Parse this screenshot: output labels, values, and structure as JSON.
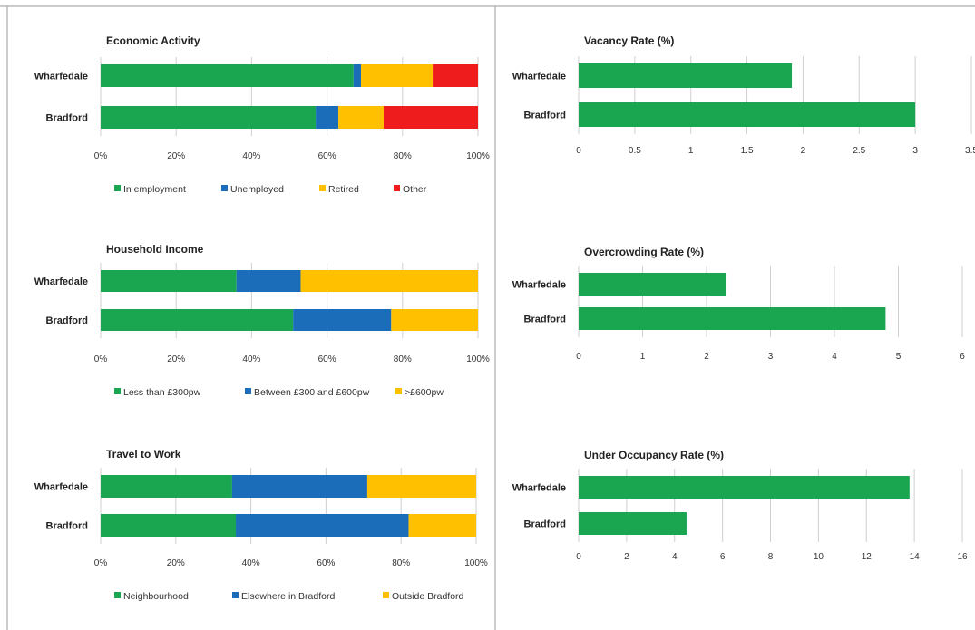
{
  "colors": {
    "green": "#1aa550",
    "blue": "#1b6db9",
    "yellow": "#ffc000",
    "red": "#ee1c1c",
    "grid": "#cfcfcf",
    "border": "#9a9a9a"
  },
  "chart_data": [
    {
      "type": "bar",
      "orientation": "horizontal",
      "stacked": true,
      "percent": true,
      "title": "Economic Activity",
      "categories": [
        "Wharfedale",
        "Bradford"
      ],
      "series": [
        {
          "name": "In employment",
          "values": [
            67,
            57
          ],
          "color": "#1aa550"
        },
        {
          "name": "Unemployed",
          "values": [
            2,
            6
          ],
          "color": "#1b6db9"
        },
        {
          "name": "Retired",
          "values": [
            19,
            12
          ],
          "color": "#ffc000"
        },
        {
          "name": "Other",
          "values": [
            12,
            25
          ],
          "color": "#ee1c1c"
        }
      ],
      "xticks": [
        "0%",
        "20%",
        "40%",
        "60%",
        "80%",
        "100%"
      ],
      "xlim": [
        0,
        100
      ],
      "grid": true,
      "legend": "bottom"
    },
    {
      "type": "bar",
      "orientation": "horizontal",
      "stacked": true,
      "percent": true,
      "title": "Household Income",
      "categories": [
        "Wharfedale",
        "Bradford"
      ],
      "series": [
        {
          "name": "Less than £300pw",
          "values": [
            36,
            51
          ],
          "color": "#1aa550"
        },
        {
          "name": "Between £300 and £600pw",
          "values": [
            17,
            26
          ],
          "color": "#1b6db9"
        },
        {
          "name": ">£600pw",
          "values": [
            47,
            23
          ],
          "color": "#ffc000"
        }
      ],
      "xticks": [
        "0%",
        "20%",
        "40%",
        "60%",
        "80%",
        "100%"
      ],
      "xlim": [
        0,
        100
      ],
      "grid": true,
      "legend": "bottom"
    },
    {
      "type": "bar",
      "orientation": "horizontal",
      "stacked": true,
      "percent": true,
      "title": "Travel to Work",
      "categories": [
        "Wharfedale",
        "Bradford"
      ],
      "series": [
        {
          "name": "Neighbourhood",
          "values": [
            35,
            36
          ],
          "color": "#1aa550"
        },
        {
          "name": "Elsewhere in Bradford",
          "values": [
            36,
            46
          ],
          "color": "#1b6db9"
        },
        {
          "name": "Outside Bradford",
          "values": [
            29,
            18
          ],
          "color": "#ffc000"
        }
      ],
      "xticks": [
        "0%",
        "20%",
        "40%",
        "60%",
        "80%",
        "100%"
      ],
      "xlim": [
        0,
        100
      ],
      "grid": true,
      "legend": "bottom"
    },
    {
      "type": "bar",
      "orientation": "horizontal",
      "stacked": false,
      "title": "Vacancy Rate (%)",
      "categories": [
        "Wharfedale",
        "Bradford"
      ],
      "series": [
        {
          "values": [
            1.9,
            3.0
          ],
          "color": "#1aa550"
        }
      ],
      "xticks": [
        "0",
        "0.5",
        "1",
        "1.5",
        "2",
        "2.5",
        "3",
        "3.5"
      ],
      "xlim": [
        0,
        3.5
      ],
      "grid": true
    },
    {
      "type": "bar",
      "orientation": "horizontal",
      "stacked": false,
      "title": "Overcrowding Rate (%)",
      "categories": [
        "Wharfedale",
        "Bradford"
      ],
      "series": [
        {
          "values": [
            2.3,
            4.8
          ],
          "color": "#1aa550"
        }
      ],
      "xticks": [
        "0",
        "1",
        "2",
        "3",
        "4",
        "5",
        "6"
      ],
      "xlim": [
        0,
        6
      ],
      "grid": true
    },
    {
      "type": "bar",
      "orientation": "horizontal",
      "stacked": false,
      "title": "Under Occupancy Rate (%)",
      "categories": [
        "Wharfedale",
        "Bradford"
      ],
      "series": [
        {
          "values": [
            13.8,
            4.5
          ],
          "color": "#1aa550"
        }
      ],
      "xticks": [
        "0",
        "2",
        "4",
        "6",
        "8",
        "10",
        "12",
        "14",
        "16"
      ],
      "xlim": [
        0,
        16
      ],
      "grid": true
    }
  ]
}
